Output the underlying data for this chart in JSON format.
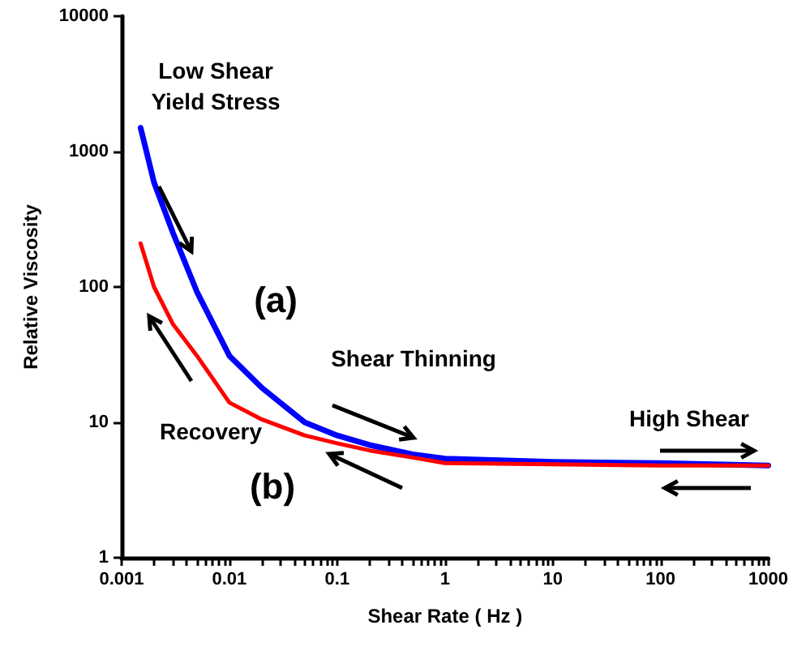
{
  "chart_data": {
    "type": "line",
    "xlabel": "Shear Rate ( Hz )",
    "ylabel": "Relative Viscosity",
    "log": "xy",
    "grid": false,
    "marker": "none",
    "line_style": "solid",
    "xlim": [
      0.001,
      1000
    ],
    "ylim": [
      1,
      10000
    ],
    "xticks": [
      0.001,
      {
        "value": 0.002,
        "label": null
      },
      {
        "value": 0.003,
        "label": null
      },
      {
        "value": 0.004,
        "label": null
      },
      {
        "value": 0.005,
        "label": null
      },
      {
        "value": 0.006,
        "label": null
      },
      {
        "value": 0.007,
        "label": null
      },
      {
        "value": 0.008,
        "label": null
      },
      {
        "value": 0.009,
        "label": null
      },
      0.01,
      {
        "value": 0.02,
        "label": null
      },
      {
        "value": 0.03,
        "label": null
      },
      {
        "value": 0.04,
        "label": null
      },
      {
        "value": 0.05,
        "label": null
      },
      {
        "value": 0.06,
        "label": null
      },
      {
        "value": 0.07,
        "label": null
      },
      {
        "value": 0.08,
        "label": null
      },
      {
        "value": 0.09,
        "label": null
      },
      0.1,
      {
        "value": 0.2,
        "label": null
      },
      {
        "value": 0.3,
        "label": null
      },
      {
        "value": 0.4,
        "label": null
      },
      {
        "value": 0.5,
        "label": null
      },
      {
        "value": 0.6,
        "label": null
      },
      {
        "value": 0.7,
        "label": null
      },
      {
        "value": 0.8,
        "label": null
      },
      {
        "value": 0.9,
        "label": null
      },
      1,
      {
        "value": 2,
        "label": null
      },
      {
        "value": 3,
        "label": null
      },
      {
        "value": 4,
        "label": null
      },
      {
        "value": 5,
        "label": null
      },
      {
        "value": 6,
        "label": null
      },
      {
        "value": 7,
        "label": null
      },
      {
        "value": 8,
        "label": null
      },
      {
        "value": 9,
        "label": null
      },
      10,
      {
        "value": 20,
        "label": null
      },
      {
        "value": 30,
        "label": null
      },
      {
        "value": 40,
        "label": null
      },
      {
        "value": 50,
        "label": null
      },
      {
        "value": 60,
        "label": null
      },
      {
        "value": 70,
        "label": null
      },
      {
        "value": 80,
        "label": null
      },
      {
        "value": 90,
        "label": null
      },
      100,
      {
        "value": 200,
        "label": null
      },
      {
        "value": 300,
        "label": null
      },
      {
        "value": 400,
        "label": null
      },
      {
        "value": 500,
        "label": null
      },
      {
        "value": 600,
        "label": null
      },
      {
        "value": 700,
        "label": null
      },
      {
        "value": 800,
        "label": null
      },
      {
        "value": 900,
        "label": null
      },
      1000
    ],
    "yticks": [
      1,
      10,
      100,
      1000,
      10000
    ],
    "x": [
      0.0015,
      0.002,
      0.003,
      0.005,
      0.01,
      0.02,
      0.05,
      0.1,
      0.2,
      0.5,
      1,
      10,
      100,
      1000
    ],
    "series": [
      {
        "color": "#0000ff",
        "values": [
          1500,
          590,
          250,
          92,
          31,
          18,
          10,
          8,
          6.8,
          5.8,
          5.4,
          5.1,
          5,
          4.8
        ]
      },
      {
        "color": "#ff0000",
        "values": [
          210,
          100,
          53,
          31,
          14,
          10.5,
          8,
          7,
          6.2,
          5.5,
          5,
          4.9,
          4.8,
          4.8
        ]
      }
    ],
    "annotations": [
      "Low Shear\nYield Stress",
      "(a)",
      "Shear Thinning",
      "High Shear",
      "Recovery",
      "(b)"
    ]
  }
}
